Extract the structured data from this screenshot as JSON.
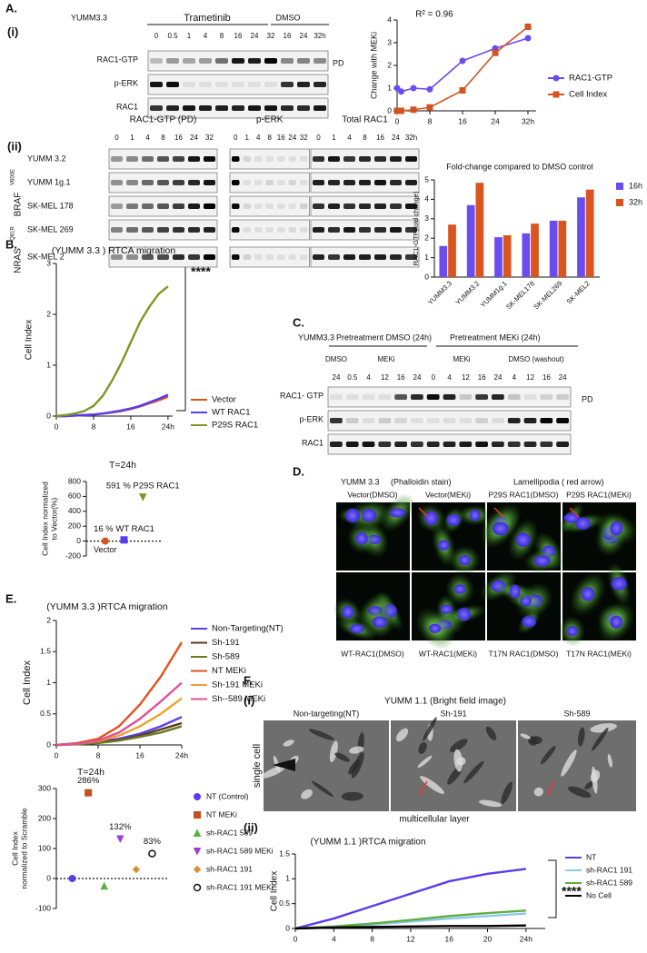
{
  "panel_labels": {
    "a": "A.",
    "a_i": "(i)",
    "a_ii": "(ii)",
    "b": "B.",
    "c": "C.",
    "d": "D.",
    "e": "E.",
    "f": "F.",
    "f_i": "(i)",
    "f_ii": "(ii)"
  },
  "blot_a1": {
    "cell_line": "YUMM3.3",
    "treatment": "Trametinib",
    "control": "DMSO",
    "lanes": [
      "0",
      "0.5",
      "1",
      "4",
      "8",
      "16",
      "24",
      "32",
      "16",
      "24",
      "32h"
    ],
    "rows": [
      "RAC1-GTP",
      "p-ERK",
      "RAC1"
    ],
    "side_label": "PD"
  },
  "blot_a2": {
    "headers": [
      "RAC1-GTP (PD)",
      "p-ERK",
      "Total RAC1"
    ],
    "lanes": [
      [
        "0",
        "1",
        "4",
        "8",
        "16",
        "24",
        "32"
      ],
      [
        "0",
        "1",
        "4",
        "8",
        "16",
        "24",
        "32"
      ],
      [
        "0",
        "1",
        "4",
        "8",
        "16",
        "24",
        "32h"
      ]
    ],
    "rows": [
      "YUMM 3.2",
      "YUMM 1g.1",
      "SK-MEL 178",
      "SK-MEL 269",
      "SK-MEL 2"
    ],
    "groups": [
      {
        "gene": "BRAF",
        "mutation": "V600E"
      },
      {
        "gene": "NRAS",
        "mutation": "Q61R"
      }
    ]
  },
  "blot_c": {
    "cell_line": "YUMM3.3",
    "pretreatments": [
      "Pretreatment  DMSO (24h)",
      "Pretreatment MEKi (24h)"
    ],
    "conditions": [
      "DMSO",
      "MEKi",
      "MEKi",
      "DMSO  (washout)"
    ],
    "lanes": [
      "24",
      "0.5",
      "4",
      "12",
      "16",
      "24",
      "0",
      "4",
      "12",
      "16",
      "24",
      "4",
      "12",
      "16",
      "24"
    ],
    "rows": [
      "RAC1- GTP",
      "p-ERK",
      "RAC1"
    ],
    "side_label": "PD"
  },
  "micro_d": {
    "cell_line": "YUMM 3.3",
    "stain": "(Phalloidin stain)",
    "note": "Lamellipodia ( red arrow)",
    "top_labels": [
      "Vector(DMSO)",
      "Vector(MEKi)",
      "P29S RAC1(DMSO)",
      "P29S RAC1(MEKi)"
    ],
    "bottom_labels": [
      "WT-RAC1(DMSO)",
      "WT-RAC1(MEKi)",
      "T17N RAC1(DMSO)",
      "T17N RAC1(MEKi)"
    ]
  },
  "bright_f": {
    "title": "YUMM 1.1 (Bright field image)",
    "columns": [
      "Non-targeting(NT)",
      "Sh-191",
      "Sh-589"
    ],
    "left_label": "single cell",
    "bottom_label": "multicellular layer"
  },
  "significance": {
    "b": "****",
    "f": "****"
  },
  "chart_data": [
    {
      "type": "line",
      "title": "R² = 0.96",
      "ylabel": [
        "Change with MEKi"
      ],
      "x": [
        0,
        1,
        4,
        8,
        16,
        24,
        32
      ],
      "xlim": [
        0,
        34
      ],
      "xticks": [
        0,
        8,
        16,
        24,
        {
          "value": 32,
          "label": "32h"
        }
      ],
      "ylim": [
        0,
        4
      ],
      "yticks": [
        0,
        1,
        2,
        3,
        4
      ],
      "series": [
        {
          "name": "RAC1-GTP",
          "color": "#6a4cf0",
          "marker": "circle",
          "values": [
            1.0,
            0.85,
            1.0,
            0.95,
            2.2,
            2.75,
            3.2
          ]
        },
        {
          "name": "Cell Index",
          "color": "#d2541e",
          "marker": "square",
          "values": [
            0,
            0,
            0.05,
            0.15,
            0.9,
            2.55,
            3.7
          ]
        }
      ]
    },
    {
      "type": "bar",
      "title": "Fold-change compared to DMSO control",
      "ylabel": [
        "RAC1-GTP(fold change)"
      ],
      "categories": [
        "YUMM3.3",
        "YUMM3.2",
        "YUMM1g.1",
        "SK-MEL178",
        "SK-MEL269",
        "SK-MEL2"
      ],
      "ylim": [
        0,
        5
      ],
      "yticks": [
        0,
        1,
        2,
        3,
        4,
        5
      ],
      "series": [
        {
          "name": "16h",
          "color": "#6a4cf0",
          "values": [
            1.6,
            3.7,
            2.05,
            2.25,
            2.9,
            4.1
          ]
        },
        {
          "name": "32h",
          "color": "#d9541e",
          "values": [
            2.7,
            4.85,
            2.15,
            2.75,
            2.9,
            4.5
          ]
        }
      ]
    },
    {
      "type": "line",
      "title": "(YUMM 3.3 ) RTCA migration",
      "ylabel": [
        "Cell Index"
      ],
      "x": [
        0,
        2,
        4,
        6,
        8,
        10,
        12,
        14,
        16,
        18,
        20,
        22,
        24
      ],
      "xlim": [
        0,
        25
      ],
      "xticks": [
        0,
        8,
        16,
        {
          "value": 24,
          "label": "24h"
        }
      ],
      "ylim": [
        0,
        3
      ],
      "yticks": [
        0,
        1,
        2,
        3
      ],
      "series": [
        {
          "name": "Vector",
          "color": "#d9541e",
          "values": [
            0,
            0,
            0.01,
            0.02,
            0.03,
            0.05,
            0.07,
            0.1,
            0.14,
            0.19,
            0.25,
            0.31,
            0.38
          ]
        },
        {
          "name": "WT RAC1",
          "color": "#5b3bf0",
          "values": [
            0,
            0,
            0.01,
            0.02,
            0.03,
            0.05,
            0.08,
            0.11,
            0.15,
            0.2,
            0.27,
            0.34,
            0.42
          ]
        },
        {
          "name": "P29S RAC1",
          "color": "#7a9a20",
          "values": [
            0,
            0.02,
            0.05,
            0.1,
            0.2,
            0.4,
            0.7,
            1.05,
            1.45,
            1.85,
            2.15,
            2.4,
            2.55
          ]
        }
      ]
    },
    {
      "type": "dot",
      "title": "T=24h",
      "ylabel": [
        "Cell Index normalized",
        "to Vector(%)"
      ],
      "categories": [
        "Vector",
        null,
        null
      ],
      "values": [
        0,
        16,
        591
      ],
      "colors": [
        "#d9541e",
        "#5b3bf0",
        "#7a9a20"
      ],
      "markers": [
        "circle",
        "square",
        "triangle-down"
      ],
      "annotations": [
        null,
        "16 % WT RAC1",
        "591 % P29S RAC1"
      ],
      "ylim": [
        -200,
        800
      ],
      "yticks": [
        -200,
        0,
        200,
        400,
        600,
        800
      ]
    },
    {
      "type": "line",
      "title": "(YUMM 3.3 )RTCA migration",
      "ylabel": [
        "Cell Index"
      ],
      "x": [
        0,
        4,
        8,
        12,
        16,
        20,
        24
      ],
      "xlim": [
        0,
        24
      ],
      "xticks": [
        0,
        8,
        16,
        {
          "value": 24,
          "label": "24h"
        }
      ],
      "ylim": [
        0,
        2
      ],
      "yticks": [
        0,
        0.5,
        1,
        1.5,
        2
      ],
      "series": [
        {
          "name": "Non-Targeting(NT)",
          "color": "#5b3bf5",
          "values": [
            0,
            0.02,
            0.05,
            0.1,
            0.18,
            0.3,
            0.45
          ]
        },
        {
          "name": "Sh-191",
          "color": "#5a3a1a",
          "values": [
            0,
            0.02,
            0.04,
            0.08,
            0.15,
            0.25,
            0.35
          ]
        },
        {
          "name": "Sh-589",
          "color": "#6b7a1e",
          "values": [
            0,
            0.01,
            0.03,
            0.07,
            0.13,
            0.2,
            0.3
          ]
        },
        {
          "name": "NT MEKi",
          "color": "#e0531f",
          "values": [
            0,
            0.03,
            0.1,
            0.3,
            0.65,
            1.1,
            1.65
          ]
        },
        {
          "name": "Sh-191 MEKi",
          "color": "#f0a030",
          "values": [
            0,
            0.02,
            0.06,
            0.15,
            0.3,
            0.5,
            0.75
          ]
        },
        {
          "name": "Sh--589 MEKi",
          "color": "#e0509a",
          "values": [
            0,
            0.02,
            0.07,
            0.2,
            0.42,
            0.7,
            1.0
          ]
        }
      ]
    },
    {
      "type": "dot",
      "title": "T=24h",
      "ylabel": [
        "Cell Index",
        "normalized  to Scramble"
      ],
      "ylim": [
        -100,
        300
      ],
      "yticks": [
        -100,
        0,
        100,
        200,
        300
      ],
      "series": [
        {
          "name": "NT (Control)",
          "color": "#5b3bf0",
          "marker": "circle",
          "values": [
            0
          ]
        },
        {
          "name": "NT MEKi",
          "color": "#c0501e",
          "marker": "square",
          "values": [
            286
          ],
          "value_labels": [
            "286%"
          ]
        },
        {
          "name": "sh-RAC1 589",
          "color": "#5cb040",
          "marker": "triangle",
          "values": [
            -25
          ]
        },
        {
          "name": "sh-RAC1 589  MEKi",
          "color": "#a040d0",
          "marker": "triangle-down",
          "values": [
            132
          ],
          "value_labels": [
            "132%"
          ]
        },
        {
          "name": "sh-RAC1 191",
          "color": "#d89030",
          "marker": "diamond",
          "values": [
            30
          ]
        },
        {
          "name": "sh-RAC1 191  MEKi",
          "color": "#111111",
          "marker": "open-circle",
          "values": [
            83
          ],
          "value_labels": [
            "83%"
          ]
        }
      ]
    },
    {
      "type": "line",
      "title": "(YUMM 1.1 )RTCA migration",
      "ylabel": [
        "Cell Index"
      ],
      "x": [
        0,
        4,
        8,
        12,
        16,
        20,
        24
      ],
      "xlim": [
        0,
        26
      ],
      "xticks": [
        0,
        4,
        8,
        12,
        16,
        20,
        {
          "value": 24,
          "label": "24h"
        }
      ],
      "ylim": [
        0,
        1.5
      ],
      "yticks": [
        0,
        0.5,
        1,
        1.5
      ],
      "series": [
        {
          "name": "NT",
          "color": "#5b3bf0",
          "values": [
            0,
            0.2,
            0.45,
            0.7,
            0.95,
            1.1,
            1.2
          ]
        },
        {
          "name": "sh-RAC1 191",
          "color": "#8cc8f0",
          "values": [
            0,
            0.03,
            0.08,
            0.14,
            0.2,
            0.25,
            0.3
          ]
        },
        {
          "name": "sh-RAC1 589",
          "color": "#5cb040",
          "values": [
            0,
            0.04,
            0.1,
            0.17,
            0.25,
            0.31,
            0.36
          ]
        },
        {
          "name": "No Cell",
          "color": "#000000",
          "values": [
            0,
            0.02,
            0.03,
            0.04,
            0.05,
            0.05,
            0.06
          ]
        }
      ]
    }
  ]
}
